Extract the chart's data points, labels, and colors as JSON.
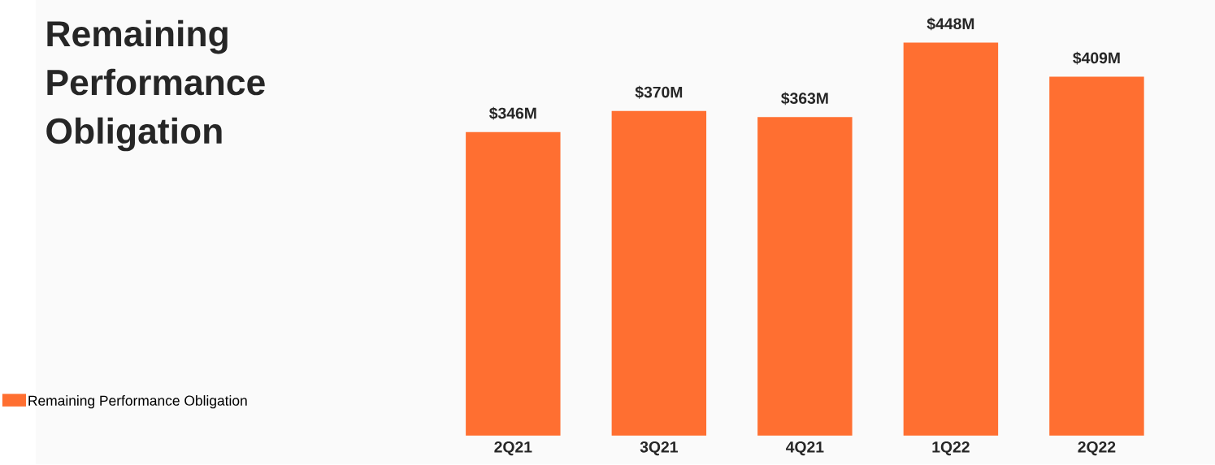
{
  "chart_data": {
    "type": "bar",
    "title": "Remaining Performance Obligation",
    "categories": [
      "2Q21",
      "3Q21",
      "4Q21",
      "1Q22",
      "2Q22"
    ],
    "series": [
      {
        "name": "Remaining Performance Obligation",
        "color": "#ff6f31",
        "values": [
          346,
          370,
          363,
          448,
          409
        ],
        "value_labels": [
          "$346M",
          "$370M",
          "$363M",
          "$448M",
          "$409M"
        ]
      }
    ],
    "legend": "bottom left"
  }
}
